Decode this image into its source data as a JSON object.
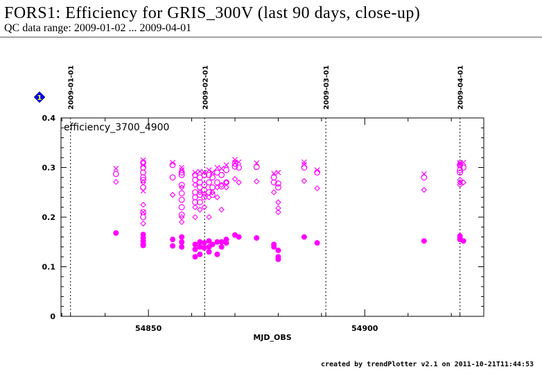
{
  "header": {
    "title": "FORS1: Efficiency for GRIS_300V (last 90 days, close-up)",
    "subtitle": "QC data range: 2009-01-02 ... 2009-04-01"
  },
  "footer": "created by trendPlotter v2.1 on 2011-10-21T11:44:53",
  "badge": {
    "label": "1",
    "color": "#0000ff"
  },
  "chart_data": {
    "type": "scatter",
    "title": "",
    "panel_label": "efficiency_3700_4900",
    "xlabel": "MJD_OBS",
    "ylabel": "",
    "xlim": [
      54829.8,
      54927.5
    ],
    "ylim": [
      0,
      0.4
    ],
    "x_ticks": [
      54850,
      54900
    ],
    "x_tick_labels": [
      "54850",
      "54900"
    ],
    "y_ticks": [
      0,
      0.1,
      0.2,
      0.3,
      0.4
    ],
    "y_tick_labels": [
      "0",
      "0.1",
      "0.2",
      "0.3",
      "0.4"
    ],
    "grid": false,
    "color": "#ff00ff",
    "date_markers": [
      {
        "label": "2009-01-01",
        "mjd": 54832
      },
      {
        "label": "2009-02-01",
        "mjd": 54863
      },
      {
        "label": "2009-03-01",
        "mjd": 54891
      },
      {
        "label": "2009-04-01",
        "mjd": 54922
      }
    ],
    "marker_types": [
      "cross",
      "circle",
      "diamond",
      "dot"
    ],
    "columns": [
      {
        "mjd": 54842.5,
        "cross": [
          0.298
        ],
        "circle": [
          0.287
        ],
        "diamond": [
          0.271
        ],
        "dot": [
          0.168
        ]
      },
      {
        "mjd": 54848.8,
        "cross": [
          0.315,
          0.305,
          0.253,
          0.21
        ],
        "circle": [
          0.31,
          0.3,
          0.29,
          0.28,
          0.275,
          0.26,
          0.21,
          0.2
        ],
        "diamond": [
          0.27,
          0.225,
          0.187
        ],
        "dot": [
          0.165,
          0.158,
          0.152,
          0.146,
          0.143
        ]
      },
      {
        "mjd": 54855.6,
        "cross": [
          0.31
        ],
        "circle": [
          0.305,
          0.28
        ],
        "diamond": [
          0.245
        ],
        "dot": [
          0.155,
          0.142
        ]
      },
      {
        "mjd": 54857.7,
        "cross": [
          0.3,
          0.295
        ],
        "circle": [
          0.29,
          0.285,
          0.265,
          0.248,
          0.235,
          0.22,
          0.205
        ],
        "diamond": [
          0.26,
          0.2,
          0.19
        ],
        "dot": [
          0.16,
          0.15,
          0.14
        ]
      },
      {
        "mjd": 54860.8,
        "cross": [
          0.29
        ],
        "circle": [
          0.285,
          0.275,
          0.25,
          0.24,
          0.23
        ],
        "diamond": [
          0.265,
          0.22,
          0.2
        ],
        "dot": [
          0.145,
          0.135,
          0.12
        ]
      },
      {
        "mjd": 54861.9,
        "cross": [
          0.292
        ],
        "circle": [
          0.28,
          0.27,
          0.26,
          0.245,
          0.23
        ],
        "diamond": [
          0.25,
          0.215
        ],
        "dot": [
          0.15,
          0.14,
          0.125
        ]
      },
      {
        "mjd": 54862.9,
        "cross": [
          0.29
        ],
        "circle": [
          0.285,
          0.265,
          0.255,
          0.24
        ],
        "diamond": [
          0.245,
          0.22
        ],
        "dot": [
          0.148,
          0.138
        ]
      },
      {
        "mjd": 54864.0,
        "cross": [
          0.295
        ],
        "circle": [
          0.285,
          0.27,
          0.25
        ],
        "diamond": [
          0.24,
          0.2
        ],
        "dot": [
          0.152,
          0.14,
          0.13
        ]
      },
      {
        "mjd": 54864.8,
        "cross": [
          0.29
        ],
        "circle": [
          0.28,
          0.26,
          0.245
        ],
        "diamond": [
          0.25
        ],
        "dot": [
          0.145
        ]
      },
      {
        "mjd": 54865.9,
        "cross": [
          0.3
        ],
        "circle": [
          0.29,
          0.27
        ],
        "diamond": [
          0.26,
          0.24
        ],
        "dot": [
          0.15,
          0.125
        ]
      },
      {
        "mjd": 54866.9,
        "cross": [
          0.298
        ],
        "circle": [
          0.285,
          0.262
        ],
        "diamond": [
          0.265,
          0.215
        ],
        "dot": [
          0.15,
          0.14
        ]
      },
      {
        "mjd": 54868.0,
        "cross": [
          0.305
        ],
        "circle": [
          0.295,
          0.27
        ],
        "diamond": [
          0.27,
          0.26
        ],
        "dot": [
          0.155,
          0.148
        ]
      },
      {
        "mjd": 54870.0,
        "cross": [
          0.316,
          0.31
        ],
        "circle": [
          0.302,
          0.308
        ],
        "diamond": [
          0.277
        ],
        "dot": [
          0.164
        ]
      },
      {
        "mjd": 54870.9,
        "cross": [
          0.311
        ],
        "circle": [
          0.3
        ],
        "diamond": [
          0.27
        ],
        "dot": [
          0.16
        ]
      },
      {
        "mjd": 54875.0,
        "cross": [
          0.309
        ],
        "circle": [
          0.301
        ],
        "diamond": [
          0.272
        ],
        "dot": [
          0.158
        ]
      },
      {
        "mjd": 54879.0,
        "cross": [
          0.288
        ],
        "circle": [
          0.28,
          0.27
        ],
        "diamond": [
          0.25
        ],
        "dot": [
          0.145,
          0.14
        ]
      },
      {
        "mjd": 54880.0,
        "cross": [
          0.29
        ],
        "circle": [
          0.268,
          0.26
        ],
        "diamond": [
          0.23,
          0.218,
          0.21
        ],
        "dot": [
          0.133,
          0.12,
          0.115
        ]
      },
      {
        "mjd": 54886.0,
        "cross": [
          0.311,
          0.306
        ],
        "circle": [
          0.3
        ],
        "diamond": [
          0.273
        ],
        "dot": [
          0.16
        ]
      },
      {
        "mjd": 54889.0,
        "cross": [
          0.295
        ],
        "circle": [
          0.29
        ],
        "diamond": [
          0.258
        ],
        "dot": [
          0.148
        ]
      },
      {
        "mjd": 54913.7,
        "cross": [
          0.287
        ],
        "circle": [
          0.28
        ],
        "diamond": [
          0.255
        ],
        "dot": [
          0.152
        ]
      },
      {
        "mjd": 54922.0,
        "cross": [
          0.31,
          0.308,
          0.305
        ],
        "circle": [
          0.305,
          0.295,
          0.29
        ],
        "diamond": [
          0.275,
          0.27,
          0.265
        ],
        "dot": [
          0.162,
          0.158,
          0.155
        ]
      },
      {
        "mjd": 54922.8,
        "cross": [
          0.31
        ],
        "circle": [
          0.3
        ],
        "diamond": [
          0.27
        ],
        "dot": [
          0.152
        ]
      }
    ]
  }
}
